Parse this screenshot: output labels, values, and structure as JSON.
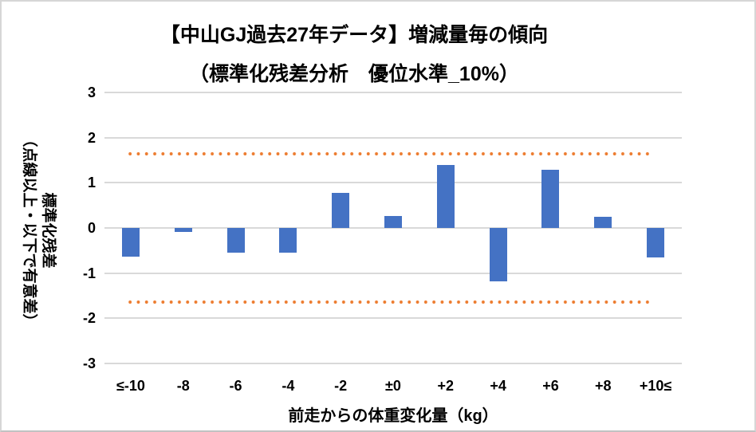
{
  "chart_data": {
    "type": "bar",
    "title_lines": [
      "【中山GJ過去27年データ】増減量毎の傾向",
      "（標準化残差分析　優位水準_10%）"
    ],
    "ylabel_lines": [
      "標準化残差",
      "（点線以上・以下で有意差）"
    ],
    "xlabel": "前走からの体重変化量（kg）",
    "categories": [
      "≤-10",
      "-8",
      "-6",
      "-4",
      "-2",
      "±0",
      "+2",
      "+4",
      "+6",
      "+8",
      "+10≤"
    ],
    "values": [
      -0.63,
      -0.08,
      -0.55,
      -0.55,
      0.78,
      0.27,
      1.39,
      -1.19,
      1.28,
      0.25,
      -0.65
    ],
    "yticks": [
      3,
      2,
      1,
      0,
      -1,
      -2,
      -3
    ],
    "ylim": [
      -3,
      3
    ],
    "thresholds": {
      "upper": 1.645,
      "lower": -1.645,
      "style": "dotted"
    },
    "grid": true,
    "legend": "none",
    "colors": {
      "bar": "#4472C4",
      "threshold": "#ED7D31",
      "grid": "#D9D9D9",
      "text": "#000000"
    }
  }
}
